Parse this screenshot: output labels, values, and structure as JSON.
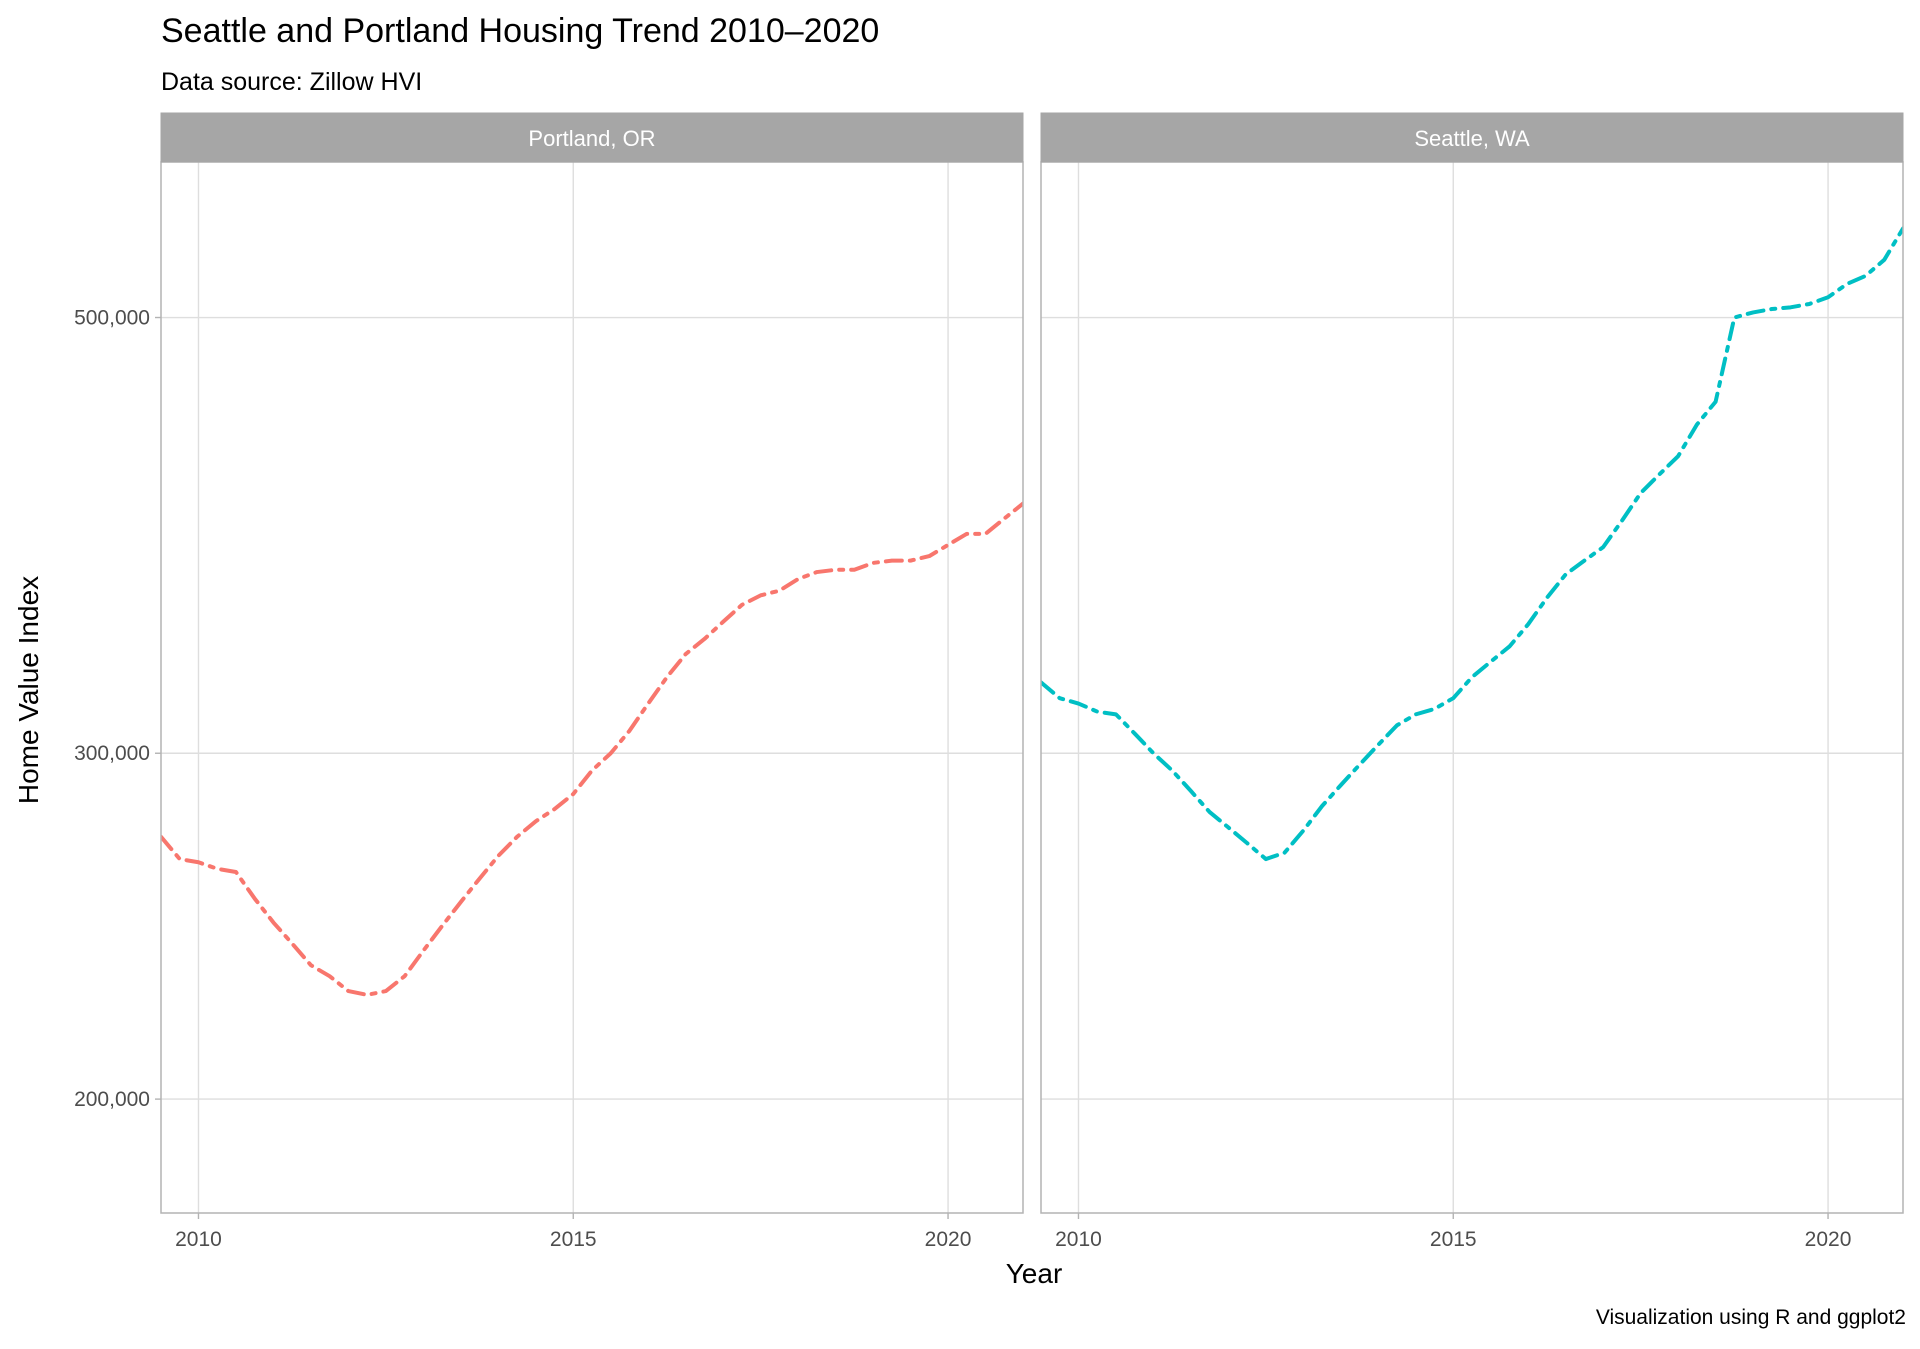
{
  "title": "Seattle and Portland Housing Trend 2010–2020",
  "subtitle": "Data source: Zillow HVI",
  "caption": "Visualization using R and ggplot2",
  "chart_data": {
    "type": "line",
    "title": "Seattle and Portland Housing Trend 2010–2020",
    "subtitle": "Data source: Zillow HVI",
    "xlabel": "Year",
    "ylabel": "Home Value Index",
    "y_scale": "log",
    "ylim": [
      175000,
      600000
    ],
    "xlim": [
      2009.5,
      2021.0
    ],
    "x_ticks": [
      2010,
      2015,
      2020
    ],
    "x_tick_labels": [
      "2010",
      "2015",
      "2020"
    ],
    "y_ticks": [
      200000,
      300000,
      500000
    ],
    "y_tick_labels": [
      "200,000",
      "300,000",
      "500,000"
    ],
    "grid": true,
    "legend": "none",
    "line_style": "dashed",
    "panels": [
      {
        "strip_label": "Portland, OR",
        "color": "#F8766D",
        "x": [
          2009.5,
          2009.75,
          2010.0,
          2010.25,
          2010.5,
          2010.75,
          2011.0,
          2011.25,
          2011.5,
          2011.75,
          2012.0,
          2012.25,
          2012.5,
          2012.75,
          2013.0,
          2013.25,
          2013.5,
          2013.75,
          2014.0,
          2014.25,
          2014.5,
          2014.75,
          2015.0,
          2015.25,
          2015.5,
          2015.75,
          2016.0,
          2016.25,
          2016.5,
          2016.75,
          2017.0,
          2017.25,
          2017.5,
          2017.75,
          2018.0,
          2018.25,
          2018.5,
          2018.75,
          2019.0,
          2019.25,
          2019.5,
          2019.75,
          2020.0,
          2020.25,
          2020.5,
          2020.75,
          2021.0
        ],
        "y": [
          272000,
          265000,
          264000,
          262000,
          261000,
          253000,
          246000,
          240000,
          234000,
          231000,
          227000,
          226000,
          227000,
          231000,
          238000,
          245000,
          252000,
          259000,
          266000,
          272000,
          277000,
          281000,
          286000,
          294000,
          300000,
          308000,
          318000,
          328000,
          337000,
          343000,
          350000,
          357000,
          361000,
          363000,
          368000,
          371000,
          372000,
          372000,
          375000,
          376000,
          376000,
          378000,
          383000,
          388000,
          388000,
          395000,
          402000
        ]
      },
      {
        "strip_label": "Seattle, WA",
        "color": "#00BFC4",
        "x": [
          2009.5,
          2009.75,
          2010.0,
          2010.25,
          2010.5,
          2010.75,
          2011.0,
          2011.25,
          2011.5,
          2011.75,
          2012.0,
          2012.25,
          2012.5,
          2012.75,
          2013.0,
          2013.25,
          2013.5,
          2013.75,
          2014.0,
          2014.25,
          2014.5,
          2014.75,
          2015.0,
          2015.25,
          2015.5,
          2015.75,
          2016.0,
          2016.25,
          2016.5,
          2016.75,
          2017.0,
          2017.25,
          2017.5,
          2017.75,
          2018.0,
          2018.25,
          2018.5,
          2018.75,
          2019.0,
          2019.25,
          2019.5,
          2019.75,
          2020.0,
          2020.25,
          2020.5,
          2020.75,
          2021.0
        ],
        "y": [
          326000,
          320000,
          318000,
          315000,
          314000,
          307000,
          300000,
          294000,
          287000,
          280000,
          275000,
          270000,
          265000,
          267000,
          274000,
          282000,
          289000,
          296000,
          303000,
          310000,
          314000,
          316000,
          320000,
          328000,
          334000,
          340000,
          349000,
          360000,
          370000,
          376000,
          382000,
          394000,
          407000,
          416000,
          425000,
          441000,
          453000,
          500000,
          503000,
          505000,
          506000,
          508000,
          512000,
          520000,
          525000,
          535000,
          555000
        ]
      }
    ]
  }
}
